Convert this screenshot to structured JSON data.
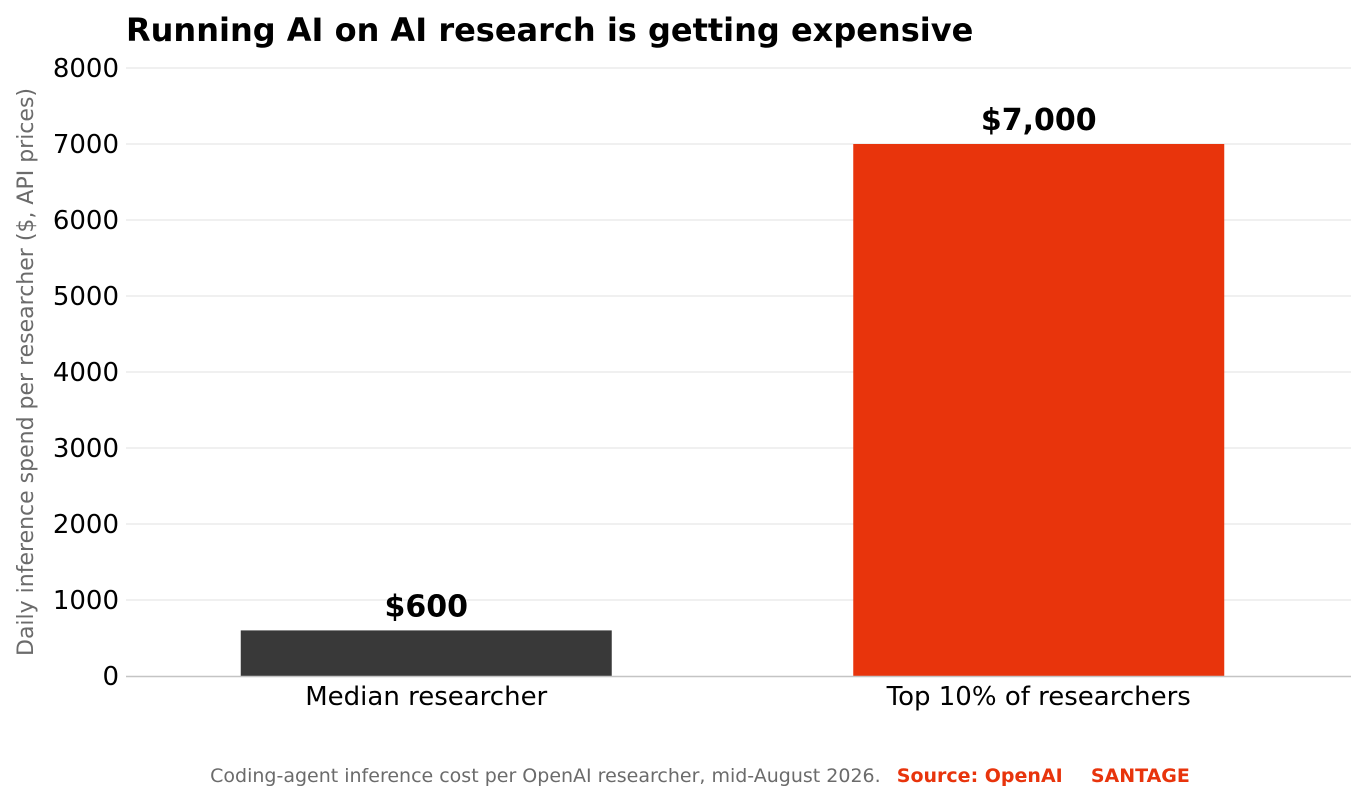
{
  "chart_data": {
    "type": "bar",
    "title": "Running AI on AI research is getting expensive",
    "xlabel": "",
    "ylabel": "Daily inference spend per researcher ($, API prices)",
    "ylim": [
      0,
      8000
    ],
    "yticks": [
      0,
      1000,
      2000,
      3000,
      4000,
      5000,
      6000,
      7000,
      8000
    ],
    "categories": [
      "Median researcher",
      "Top 10% of researchers"
    ],
    "values": [
      600,
      7000
    ],
    "value_labels": [
      "$600",
      "$7,000"
    ],
    "bar_colors": [
      "#393939",
      "#e8340c"
    ],
    "grid": true,
    "legend": "none"
  },
  "footer": {
    "note": "Coding-agent inference cost per OpenAI researcher, mid-August 2026.",
    "source": "Source: OpenAI",
    "brand": "SANTAGE"
  },
  "colors": {
    "accent": "#e8340c",
    "bar_dark": "#393939",
    "grid": "#ececec",
    "axis": "#c4c4c4",
    "muted_text": "#6b6b6b"
  }
}
